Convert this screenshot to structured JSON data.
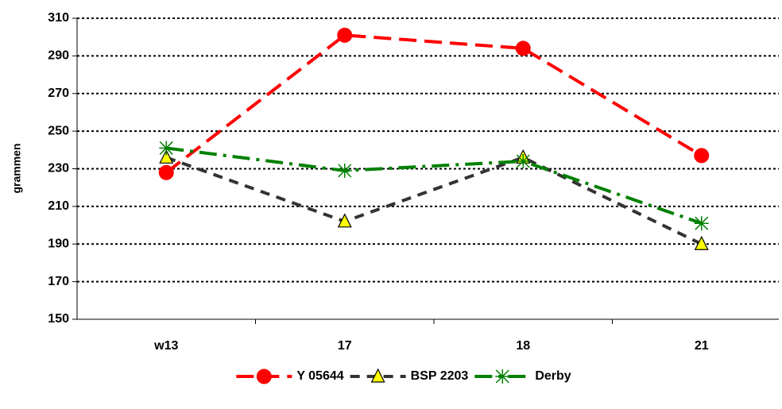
{
  "chart_data": {
    "type": "line",
    "ylabel": "grammen",
    "categories": [
      "w13",
      "17",
      "18",
      "21"
    ],
    "series": [
      {
        "name": "Y 05644",
        "color": "#ff0000",
        "marker": "circle",
        "values": [
          228,
          301,
          294,
          237
        ]
      },
      {
        "name": "BSP 2203",
        "color": "#333333",
        "marker": "triangle",
        "values": [
          236,
          202,
          236,
          190
        ]
      },
      {
        "name": "Derby",
        "color": "#008000",
        "marker": "star",
        "values": [
          241,
          229,
          234,
          201
        ]
      }
    ],
    "ylim": [
      150,
      310
    ],
    "yticks": [
      150,
      170,
      190,
      210,
      230,
      250,
      270,
      290,
      310
    ],
    "grid": true,
    "legend": "bottom"
  }
}
